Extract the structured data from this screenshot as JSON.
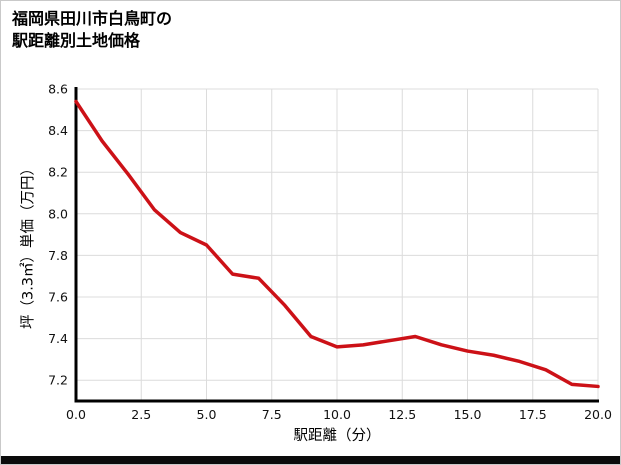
{
  "page": {
    "title_line1": "福岡県田川市白鳥町の",
    "title_line2": "駅距離別土地価格"
  },
  "chart_data": {
    "type": "line",
    "title": "福岡県田川市白鳥町の駅距離別土地価格",
    "xlabel": "駅距離（分）",
    "ylabel": "坪（3.3㎡）単価（万円）",
    "x": [
      0,
      1,
      2,
      3,
      4,
      5,
      6,
      7,
      8,
      9,
      10,
      11,
      12,
      13,
      14,
      15,
      16,
      17,
      18,
      19,
      20
    ],
    "series": [
      {
        "name": "坪単価",
        "values": [
          8.54,
          8.35,
          8.19,
          8.02,
          7.91,
          7.85,
          7.71,
          7.69,
          7.56,
          7.41,
          7.36,
          7.37,
          7.39,
          7.41,
          7.37,
          7.34,
          7.32,
          7.29,
          7.25,
          7.18,
          7.17
        ]
      }
    ],
    "xlim": [
      0,
      20
    ],
    "ylim": [
      7.1,
      8.6
    ],
    "x_ticks": [
      "0.0",
      "2.5",
      "5.0",
      "7.5",
      "10.0",
      "12.5",
      "15.0",
      "17.5",
      "20.0"
    ],
    "y_ticks": [
      "7.2",
      "7.4",
      "7.6",
      "7.8",
      "8.0",
      "8.2",
      "8.4",
      "8.6"
    ],
    "grid": true,
    "legend": "none",
    "line_color": "#cc1117",
    "grid_color": "#dcdcdc",
    "axis_color": "#000000",
    "tick_color": "#111111"
  }
}
